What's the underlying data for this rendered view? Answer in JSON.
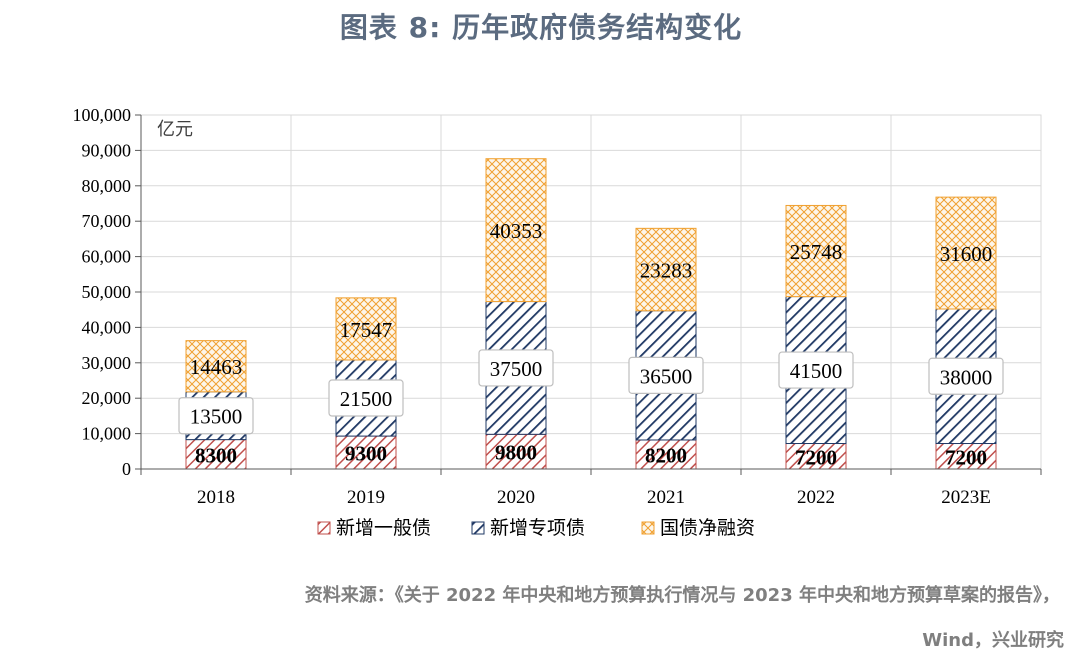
{
  "title": "图表 8:  历年政府债务结构变化",
  "chart_data": {
    "type": "bar",
    "stacked": true,
    "title": "图表 8:  历年政府债务结构变化",
    "unit_label": "亿元",
    "categories": [
      "2018",
      "2019",
      "2020",
      "2021",
      "2022",
      "2023E"
    ],
    "series": [
      {
        "name": "新增一般债",
        "values": [
          8300,
          9300,
          9800,
          8200,
          7200,
          7200
        ],
        "color": "#c0504d"
      },
      {
        "name": "新增专项债",
        "values": [
          13500,
          21500,
          37500,
          36500,
          41500,
          38000
        ],
        "color": "#1f3864"
      },
      {
        "name": "国债净融资",
        "values": [
          14463,
          17547,
          40353,
          23283,
          25748,
          31600
        ],
        "color": "#f0a030"
      }
    ],
    "ylim": [
      0,
      100000
    ],
    "yticks": [
      "0",
      "10,000",
      "20,000",
      "30,000",
      "40,000",
      "50,000",
      "60,000",
      "70,000",
      "80,000",
      "90,000",
      "100,000"
    ],
    "ytick_values": [
      0,
      10000,
      20000,
      30000,
      40000,
      50000,
      60000,
      70000,
      80000,
      90000,
      100000
    ],
    "grid": true,
    "legend_position": "bottom"
  },
  "source": {
    "line1": "资料来源：《关于 2022 年中央和地方预算执行情况与 2023 年中央和地方预算草案的报告》，",
    "line2": "Wind，兴业研究"
  }
}
